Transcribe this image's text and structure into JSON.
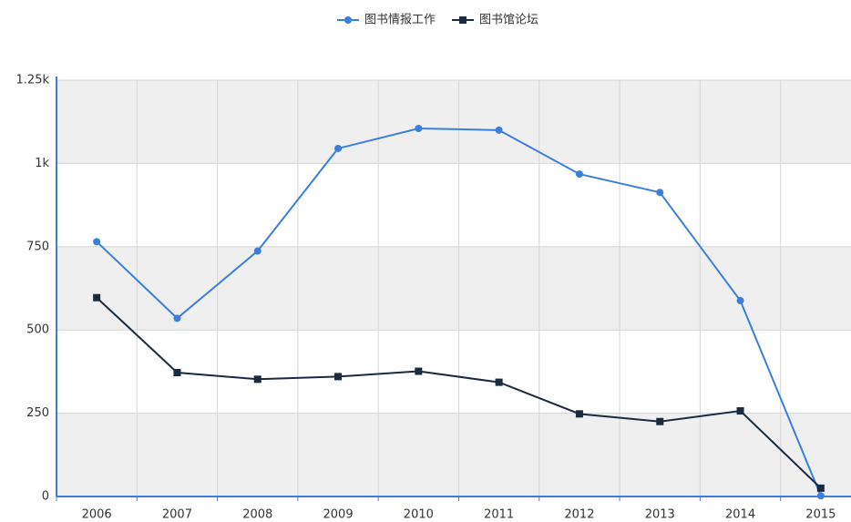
{
  "chart_data": {
    "type": "line",
    "categories": [
      "2006",
      "2007",
      "2008",
      "2009",
      "2010",
      "2011",
      "2012",
      "2013",
      "2014",
      "2015"
    ],
    "series": [
      {
        "name": "图书情报工作",
        "color": "#3a7fdc",
        "marker": "circle",
        "values": [
          765,
          535,
          737,
          1045,
          1105,
          1100,
          968,
          913,
          588,
          2
        ]
      },
      {
        "name": "图书馆论坛",
        "color": "#1c2a40",
        "marker": "square",
        "values": [
          597,
          372,
          352,
          360,
          376,
          343,
          248,
          225,
          257,
          25
        ]
      }
    ],
    "ylim": [
      0,
      1250
    ],
    "yticks": [
      0,
      250,
      500,
      750,
      {
        "value": 1000,
        "label": "1k"
      },
      {
        "value": 1250,
        "label": "1.25k"
      }
    ],
    "grid": true,
    "legend": "top"
  }
}
